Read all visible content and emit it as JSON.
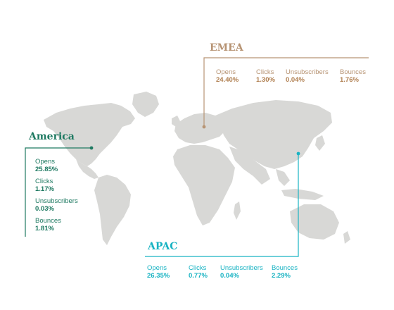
{
  "colors": {
    "land": "#d8d8d6",
    "emea": "#b79474",
    "america": "#1f7a62",
    "apac": "#19b3c3"
  },
  "regions": {
    "emea": {
      "title": "EMEA",
      "stats": [
        {
          "label": "Opens",
          "value": "24.40%"
        },
        {
          "label": "Clicks",
          "value": "1.30%"
        },
        {
          "label": "Unsubscribers",
          "value": "0.04%"
        },
        {
          "label": "Bounces",
          "value": "1.76%"
        }
      ]
    },
    "america": {
      "title": "America",
      "stats": [
        {
          "label": "Opens",
          "value": "25.85%"
        },
        {
          "label": "Clicks",
          "value": "1.17%"
        },
        {
          "label": "Unsubscribers",
          "value": "0.03%"
        },
        {
          "label": "Bounces",
          "value": "1.81%"
        }
      ]
    },
    "apac": {
      "title": "APAC",
      "stats": [
        {
          "label": "Opens",
          "value": "26.35%"
        },
        {
          "label": "Clicks",
          "value": "0.77%"
        },
        {
          "label": "Unsubscribers",
          "value": "0.04%"
        },
        {
          "label": "Bounces",
          "value": "2.29%"
        }
      ]
    }
  }
}
